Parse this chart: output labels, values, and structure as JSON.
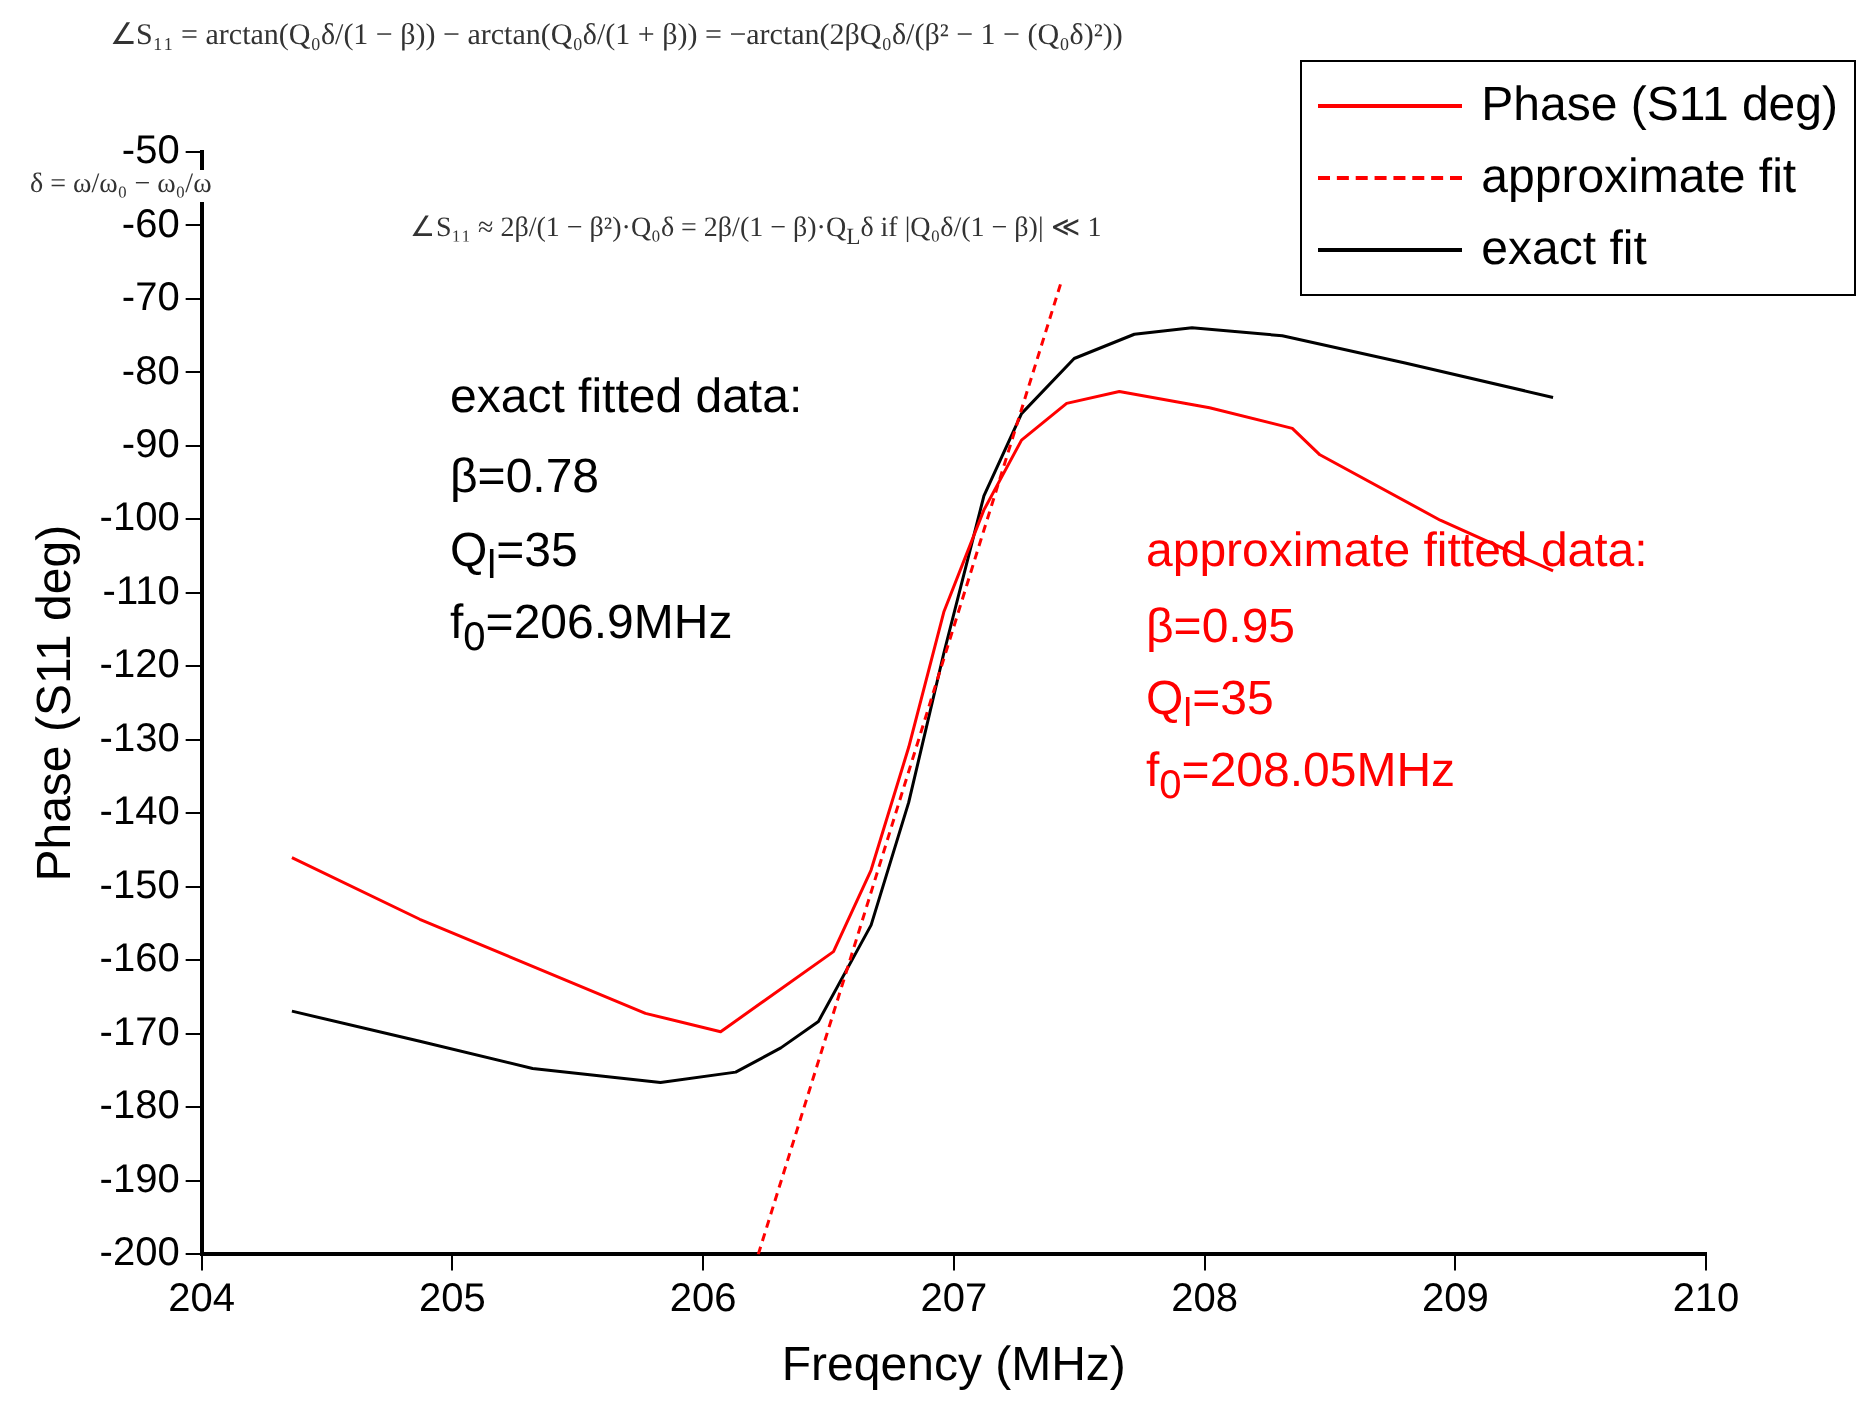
{
  "chart_data": {
    "type": "line",
    "xlabel": "Freqency (MHz)",
    "ylabel": "Phase (S11 deg)",
    "xlim": [
      204,
      210
    ],
    "xticks": [
      204,
      205,
      206,
      207,
      208,
      209,
      210
    ],
    "ylim": [
      -200,
      -50
    ],
    "yticks": [
      -200,
      -190,
      -180,
      -170,
      -160,
      -150,
      -140,
      -130,
      -120,
      -110,
      -100,
      -90,
      -80,
      -70,
      -60,
      -50
    ],
    "grid": false,
    "legend": "top right",
    "marker": "none",
    "series": [
      {
        "name": "Phase (S11 deg)",
        "color": "#ff0000",
        "line_style": "solid",
        "x": [
          204.36,
          204.87,
          205.32,
          205.77,
          206.07,
          206.52,
          206.67,
          206.82,
          206.96,
          207.12,
          207.27,
          207.45,
          207.66,
          208.02,
          208.35,
          208.46,
          208.94,
          209.39
        ],
        "values": [
          -146,
          -154.4,
          -160.8,
          -167.2,
          -169.7,
          -158.8,
          -147.7,
          -131,
          -112.6,
          -98.7,
          -89.2,
          -84.2,
          -82.6,
          -84.8,
          -87.6,
          -91.2,
          -100.1,
          -107
        ]
      },
      {
        "name": "approximate fit",
        "color": "#ff0000",
        "line_style": "dashed",
        "x": [
          206.22,
          207.43
        ],
        "values": [
          -200,
          -67.5
        ]
      },
      {
        "name": "exact fit",
        "color": "#000000",
        "line_style": "solid",
        "x": [
          204.36,
          204.87,
          205.32,
          205.83,
          206.13,
          206.31,
          206.46,
          206.67,
          206.82,
          206.96,
          207.12,
          207.27,
          207.48,
          207.72,
          207.95,
          208.31,
          208.8,
          209.39
        ],
        "values": [
          -166.9,
          -171,
          -174.7,
          -176.6,
          -175.2,
          -171.9,
          -168.3,
          -155.2,
          -138.5,
          -118.2,
          -96.8,
          -85.6,
          -78.1,
          -74.8,
          -73.9,
          -75,
          -78.7,
          -83.4
        ]
      }
    ],
    "annotations": [
      "∠S₁₁ = arctan(Q₀δ/(1 − β)) − arctan(Q₀δ/(1 + β)) = −arctan(2βQ₀δ/(β² − 1 − (Q₀δ)²))",
      "δ = ω/ω₀ − ω₀/ω",
      "∠S₁₁ ≈ 2β/(1 − β²)·Q₀δ = 2β/(1 − β)·Q$_{L}$δ   if   |Q₀δ/(1 − β)| ≪ 1",
      "exact fitted data:",
      "β=0.78",
      "Q$_{l}$=35",
      "f$_{0}$=206.9MHz",
      "approximate fitted data:",
      "β=0.95",
      "Q$_{l}$=35",
      "f$_{0}$=208.05MHz"
    ]
  }
}
